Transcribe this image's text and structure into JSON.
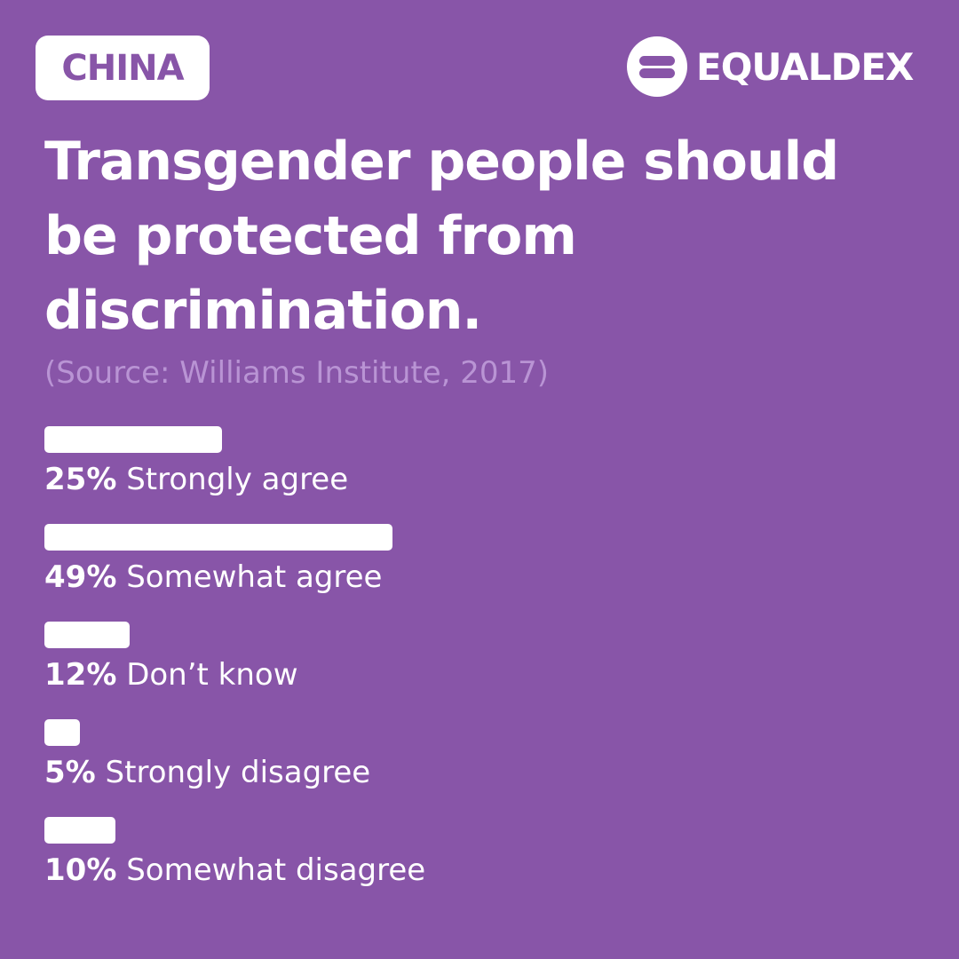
{
  "badge": "CHINA",
  "brand": "EQUALDEX",
  "chart_data": {
    "type": "bar",
    "orientation": "horizontal",
    "title": "Transgender people should be protected from discrimination.",
    "subtitle": "(Source: Williams Institute, 2017)",
    "categories": [
      "Strongly agree",
      "Somewhat agree",
      "Don’t know",
      "Strongly disagree",
      "Somewhat disagree"
    ],
    "values": [
      25,
      49,
      12,
      5,
      10
    ],
    "value_labels": [
      "25%",
      "49%",
      "12%",
      "5%",
      "10%"
    ],
    "color": "#ffffff"
  }
}
